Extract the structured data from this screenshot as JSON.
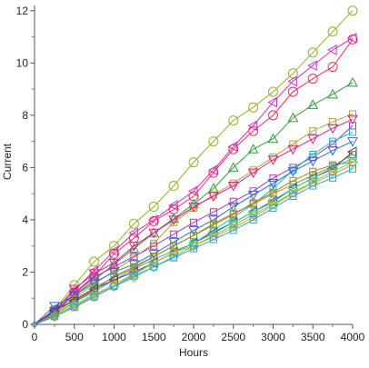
{
  "chart_data": {
    "type": "line",
    "title": "",
    "xlabel": "Hours",
    "ylabel": "Current",
    "xlim": [
      0,
      4000
    ],
    "ylim": [
      0,
      12.2
    ],
    "x_ticks": [
      "0",
      "500",
      "1000",
      "1500",
      "2000",
      "2500",
      "3000",
      "3500",
      "4000"
    ],
    "y_ticks": [
      "0",
      "2",
      "4",
      "6",
      "8",
      "10",
      "12"
    ],
    "grid": false,
    "legend": "none",
    "x": [
      0,
      250,
      500,
      750,
      1000,
      1250,
      1500,
      1750,
      2000,
      2250,
      2500,
      2750,
      3000,
      3250,
      3500,
      3750,
      4000
    ],
    "series": [
      {
        "color": "#9aad2a",
        "marker": "circle",
        "values": [
          0,
          0.55,
          1.5,
          2.4,
          3.0,
          3.85,
          4.5,
          5.3,
          6.2,
          7.0,
          7.8,
          8.3,
          8.9,
          9.6,
          10.4,
          11.2,
          12.0
        ]
      },
      {
        "color": "#c833c8",
        "marker": "tri-left",
        "values": [
          0,
          0.5,
          1.3,
          2.05,
          2.8,
          3.5,
          4.0,
          4.55,
          5.1,
          5.9,
          6.8,
          7.6,
          8.5,
          9.3,
          9.9,
          10.5,
          10.95
        ]
      },
      {
        "color": "#e83060",
        "marker": "circle",
        "values": [
          0,
          0.45,
          1.2,
          1.85,
          2.7,
          3.3,
          3.95,
          4.4,
          4.9,
          5.8,
          6.7,
          7.4,
          8.0,
          8.9,
          9.4,
          9.85,
          10.9
        ]
      },
      {
        "color": "#2f9e3a",
        "marker": "triangle",
        "values": [
          0,
          0.45,
          1.1,
          1.7,
          2.3,
          2.9,
          3.5,
          4.05,
          4.6,
          5.2,
          6.0,
          6.7,
          7.1,
          7.9,
          8.4,
          8.8,
          9.25
        ]
      },
      {
        "color": "#b7a13a",
        "marker": "square",
        "values": [
          0,
          0.4,
          1.0,
          1.55,
          2.05,
          2.55,
          3.1,
          3.9,
          4.45,
          4.95,
          5.4,
          5.9,
          6.4,
          6.9,
          7.4,
          7.75,
          8.05
        ]
      },
      {
        "color": "#d61e8c",
        "marker": "tri-down",
        "values": [
          0,
          0.5,
          1.35,
          1.95,
          2.35,
          3.0,
          3.5,
          4.0,
          4.5,
          4.9,
          5.3,
          5.8,
          6.3,
          6.7,
          7.1,
          7.5,
          7.85
        ]
      },
      {
        "color": "#a83ab8",
        "marker": "square",
        "values": [
          0,
          0.5,
          1.15,
          1.8,
          2.2,
          2.6,
          3.0,
          3.45,
          3.9,
          4.3,
          4.7,
          5.1,
          5.6,
          6.0,
          6.4,
          6.9,
          7.6
        ]
      },
      {
        "color": "#25b3c8",
        "marker": "square",
        "values": [
          0,
          0.35,
          0.85,
          1.25,
          1.7,
          2.1,
          2.5,
          2.8,
          3.1,
          3.6,
          4.1,
          4.6,
          5.2,
          5.9,
          6.5,
          7.0,
          7.35
        ]
      },
      {
        "color": "#2a6ad8",
        "marker": "tri-down",
        "values": [
          0,
          0.7,
          1.1,
          1.6,
          2.0,
          2.3,
          2.7,
          3.15,
          3.6,
          4.0,
          4.5,
          4.95,
          5.4,
          5.85,
          6.25,
          6.65,
          7.0
        ]
      },
      {
        "color": "#c87e1e",
        "marker": "square",
        "values": [
          0,
          0.4,
          0.95,
          1.4,
          1.8,
          2.15,
          2.6,
          3.0,
          3.4,
          3.85,
          4.25,
          4.6,
          5.0,
          5.35,
          5.7,
          6.05,
          6.5
        ]
      },
      {
        "color": "#8a8e2a",
        "marker": "square",
        "values": [
          0,
          0.35,
          0.85,
          1.3,
          1.85,
          2.2,
          2.6,
          3.0,
          3.4,
          3.8,
          4.2,
          4.65,
          5.05,
          5.5,
          5.85,
          6.1,
          6.2
        ]
      },
      {
        "color": "#3c3c8c",
        "marker": "tri-left",
        "values": [
          0,
          0.55,
          0.9,
          1.35,
          1.7,
          2.0,
          2.35,
          2.75,
          3.1,
          3.5,
          3.9,
          4.3,
          4.7,
          5.2,
          5.6,
          5.95,
          6.6
        ]
      },
      {
        "color": "#40c8a8",
        "marker": "diamond",
        "values": [
          0,
          0.3,
          0.75,
          1.15,
          1.5,
          1.9,
          2.35,
          2.75,
          3.1,
          3.55,
          3.9,
          4.3,
          4.75,
          5.2,
          5.6,
          6.0,
          6.35
        ]
      },
      {
        "color": "#5cd05a",
        "marker": "diamond",
        "values": [
          0,
          0.3,
          0.7,
          1.05,
          1.45,
          1.8,
          2.2,
          2.6,
          3.0,
          3.4,
          3.8,
          4.2,
          4.6,
          5.05,
          5.45,
          5.85,
          6.2
        ]
      },
      {
        "color": "#e8a020",
        "marker": "square",
        "values": [
          0,
          0.3,
          0.7,
          1.1,
          1.5,
          1.95,
          2.35,
          2.75,
          3.0,
          3.35,
          3.7,
          4.1,
          4.55,
          5.0,
          5.4,
          5.75,
          6.1
        ]
      },
      {
        "color": "#36a0d8",
        "marker": "square",
        "values": [
          0,
          0.3,
          0.65,
          1.05,
          1.45,
          1.85,
          2.2,
          2.55,
          2.9,
          3.25,
          3.6,
          4.0,
          4.45,
          4.9,
          5.3,
          5.6,
          5.95
        ]
      }
    ]
  }
}
